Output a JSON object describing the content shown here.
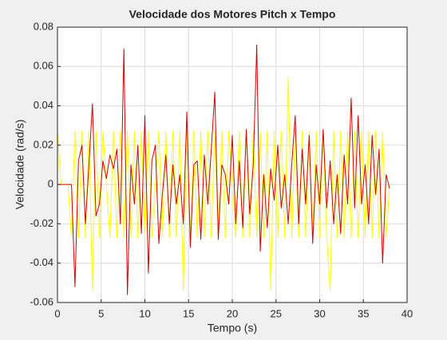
{
  "chart_data": {
    "type": "line",
    "title": "Velocidade dos Motores Pitch x Tempo",
    "xlabel": "Tempo (s)",
    "ylabel": "Velocidade (rad/s)",
    "xlim": [
      0,
      40
    ],
    "xticks": [
      0,
      5,
      10,
      15,
      20,
      25,
      30,
      35,
      40
    ],
    "ylim": [
      -0.06,
      0.08
    ],
    "yticks": [
      -0.06,
      -0.04,
      -0.02,
      0,
      0.02,
      0.04,
      0.06,
      0.08
    ],
    "grid": true,
    "x": [
      0,
      0.4,
      0.8,
      1.2,
      1.6,
      2.0,
      2.4,
      2.8,
      3.2,
      3.6,
      4.0,
      4.4,
      4.8,
      5.2,
      5.6,
      6.0,
      6.4,
      6.8,
      7.2,
      7.6,
      8.0,
      8.4,
      8.8,
      9.2,
      9.6,
      10.0,
      10.4,
      10.8,
      11.2,
      11.6,
      12.0,
      12.4,
      12.8,
      13.2,
      13.6,
      14.0,
      14.4,
      14.8,
      15.2,
      15.6,
      16.0,
      16.4,
      16.8,
      17.2,
      17.6,
      18.0,
      18.4,
      18.8,
      19.2,
      19.6,
      20.0,
      20.4,
      20.8,
      21.2,
      21.6,
      22.0,
      22.4,
      22.8,
      23.2,
      23.6,
      24.0,
      24.4,
      24.8,
      25.2,
      25.6,
      26.0,
      26.4,
      26.8,
      27.2,
      27.6,
      28.0,
      28.4,
      28.8,
      29.2,
      29.6,
      30.0,
      30.4,
      30.8,
      31.2,
      31.6,
      32.0,
      32.4,
      32.8,
      33.2,
      33.6,
      34.0,
      34.4,
      34.8,
      35.2,
      35.6,
      36.0,
      36.4,
      36.8,
      37.2,
      37.6,
      38.0
    ],
    "series": [
      {
        "color": "#ffff00",
        "values": [
          0.027,
          0,
          0,
          0,
          -0.027,
          0.027,
          -0.027,
          0.027,
          -0.027,
          0.027,
          -0.054,
          0.027,
          -0.027,
          0.027,
          0,
          -0.027,
          0.027,
          -0.027,
          0.027,
          -0.027,
          0.027,
          -0.027,
          0.027,
          -0.027,
          0.027,
          -0.027,
          0.027,
          -0.027,
          0,
          0.027,
          -0.027,
          0.027,
          -0.027,
          0.027,
          -0.027,
          0.027,
          -0.054,
          0.027,
          -0.027,
          0.027,
          -0.027,
          0.027,
          -0.027,
          0.027,
          -0.027,
          0.027,
          -0.027,
          0.027,
          -0.027,
          0.027,
          0,
          -0.027,
          0.027,
          -0.027,
          0.027,
          -0.027,
          0.027,
          -0.027,
          0.027,
          -0.027,
          0.027,
          -0.054,
          0.027,
          -0.027,
          0.027,
          -0.027,
          0.054,
          -0.027,
          0.027,
          -0.027,
          0.027,
          -0.027,
          0.027,
          -0.027,
          0.027,
          -0.027,
          0.027,
          -0.027,
          -0.054,
          0.027,
          -0.027,
          0.027,
          -0.027,
          0.027,
          -0.027,
          0.027,
          -0.027,
          0.027,
          -0.027,
          0.027,
          -0.027,
          0.027,
          -0.027,
          0.027,
          -0.027,
          0
        ]
      },
      {
        "color": "#d40000",
        "values": [
          0,
          0,
          0,
          0,
          0,
          -0.052,
          0.012,
          0.02,
          -0.02,
          0.01,
          0.041,
          -0.016,
          -0.01,
          0.012,
          0.003,
          0.015,
          0.008,
          0.018,
          -0.02,
          0.069,
          -0.056,
          0.01,
          -0.01,
          0.02,
          -0.025,
          0.035,
          -0.045,
          0.012,
          0.02,
          -0.03,
          -0.005,
          0.015,
          -0.02,
          0.01,
          -0.01,
          0.005,
          -0.02,
          0.037,
          -0.032,
          0.01,
          0.012,
          -0.028,
          0.015,
          -0.01,
          0.018,
          0.047,
          -0.028,
          0.01,
          0.005,
          -0.01,
          0.025,
          -0.02,
          0.012,
          -0.022,
          0.028,
          -0.015,
          0.01,
          0.071,
          -0.034,
          0.005,
          -0.022,
          0.008,
          -0.008,
          0.02,
          -0.012,
          0.005,
          -0.02,
          0.01,
          0.035,
          -0.02,
          0.018,
          -0.01,
          0.025,
          -0.03,
          0.01,
          -0.01,
          0.028,
          -0.012,
          0.012,
          -0.02,
          0.005,
          -0.025,
          0.015,
          -0.01,
          0.044,
          -0.012,
          0.035,
          -0.01,
          0.01,
          -0.02,
          0.025,
          -0.005,
          0.018,
          -0.04,
          0.005,
          -0.002
        ]
      }
    ]
  }
}
